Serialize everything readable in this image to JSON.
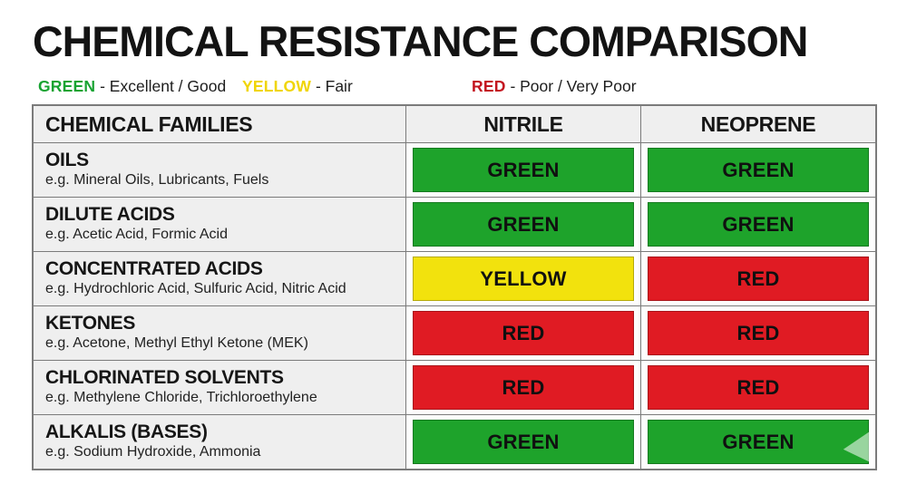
{
  "title": "CHEMICAL RESISTANCE COMPARISON",
  "legend": {
    "items": [
      {
        "label": "GREEN",
        "description": "- Excellent / Good",
        "color": "#18a332"
      },
      {
        "label": "YELLOW",
        "description": "- Fair",
        "color": "#f0d504"
      },
      {
        "label": "RED",
        "description": "- Poor / Very Poor",
        "color": "#c3141f"
      }
    ]
  },
  "rating_colors": {
    "GREEN": "#1ea32b",
    "YELLOW": "#f2e20d",
    "RED": "#e01b23"
  },
  "chart_data": {
    "type": "table",
    "title": "CHEMICAL RESISTANCE COMPARISON",
    "columns": [
      "CHEMICAL FAMILIES",
      "NITRILE",
      "NEOPRENE"
    ],
    "rows": [
      {
        "family": "OILS",
        "examples": "e.g. Mineral Oils, Lubricants, Fuels",
        "nitrile": "GREEN",
        "neoprene": "GREEN"
      },
      {
        "family": "DILUTE ACIDS",
        "examples": "e.g. Acetic Acid, Formic Acid",
        "nitrile": "GREEN",
        "neoprene": "GREEN"
      },
      {
        "family": "CONCENTRATED ACIDS",
        "examples": "e.g. Hydrochloric Acid, Sulfuric Acid, Nitric Acid",
        "nitrile": "YELLOW",
        "neoprene": "RED"
      },
      {
        "family": "KETONES",
        "examples": "e.g. Acetone, Methyl Ethyl Ketone (MEK)",
        "nitrile": "RED",
        "neoprene": "RED"
      },
      {
        "family": "CHLORINATED SOLVENTS",
        "examples": "e.g. Methylene Chloride, Trichloroethylene",
        "nitrile": "RED",
        "neoprene": "RED"
      },
      {
        "family": "ALKALIS (BASES)",
        "examples": "e.g. Sodium Hydroxide, Ammonia",
        "nitrile": "GREEN",
        "neoprene": "GREEN"
      }
    ],
    "legend_note": "GREEN - Excellent / Good; YELLOW - Fair; RED - Poor / Very Poor"
  }
}
